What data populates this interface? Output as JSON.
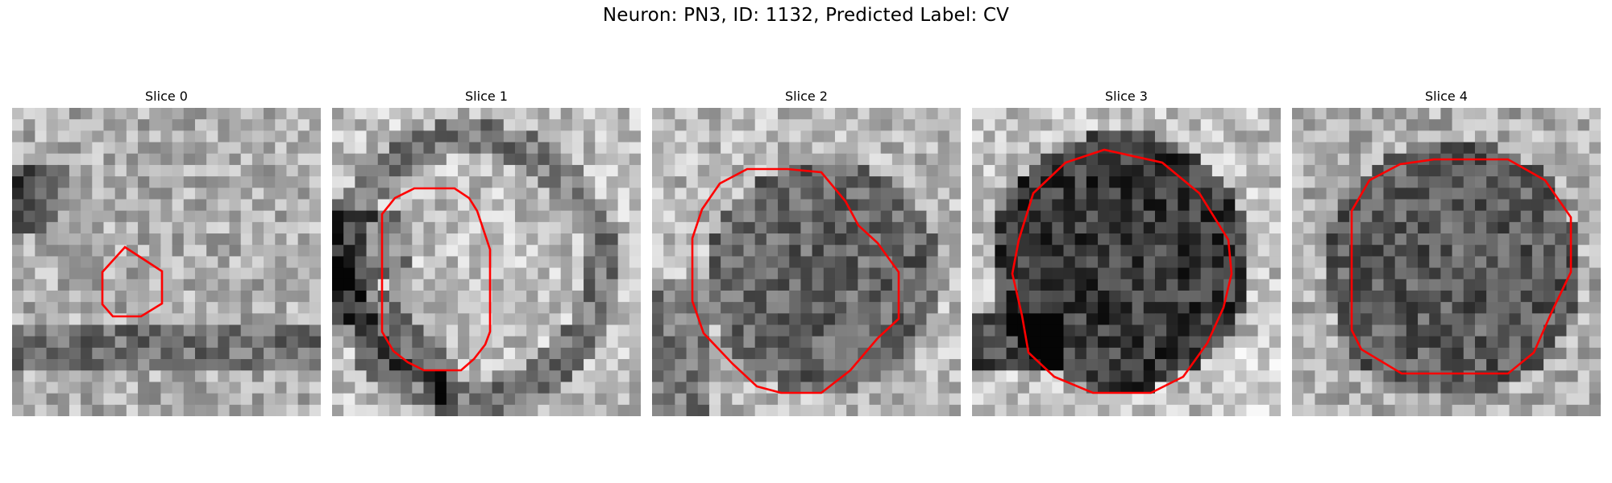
{
  "figure": {
    "title": "Neuron: PN3, ID: 1132, Predicted Label: CV"
  },
  "panels": [
    {
      "title": "Slice 0",
      "contour_color": "#ff0000"
    },
    {
      "title": "Slice 1",
      "contour_color": "#ff0000"
    },
    {
      "title": "Slice 2",
      "contour_color": "#ff0000"
    },
    {
      "title": "Slice 3",
      "contour_color": "#ff0000"
    },
    {
      "title": "Slice 4",
      "contour_color": "#ff0000"
    }
  ]
}
